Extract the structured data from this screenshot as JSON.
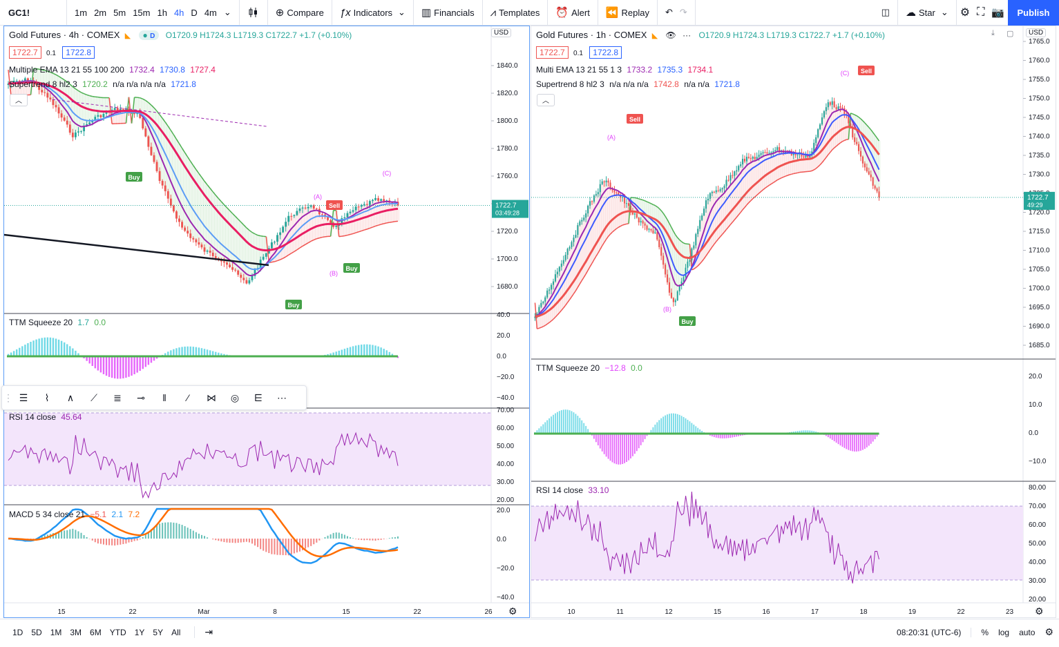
{
  "toolbar": {
    "symbol": "GC1!",
    "intervals": [
      "1m",
      "2m",
      "5m",
      "15m",
      "1h",
      "4h",
      "D",
      "4m"
    ],
    "compare_label": "Compare",
    "indicators_label": "Indicators",
    "financials_label": "Financials",
    "templates_label": "Templates",
    "alert_label": "Alert",
    "replay_label": "Replay",
    "star_label": "Star",
    "publish_label": "Publish"
  },
  "left_chart": {
    "title": "Gold Futures · 4h · COMEX",
    "ohlc": "O1720.9 H1724.3 L1719.3 C1722.7 +1.7 (+0.10%)",
    "bid": "1722.7",
    "spread": "0.1",
    "ask": "1722.8",
    "currency": "USD",
    "ema_legend": {
      "name": "Multiple EMA 13 21 55 100 200",
      "v1": "1732.4",
      "v2": "1730.8",
      "v3": "1727.4"
    },
    "supertrend_legend": {
      "name": "Supertrend 8 hl2 3",
      "v1": "1720.2",
      "v2": "n/a n/a n/a n/a",
      "v3": "1721.8"
    },
    "price_axis": [
      "1840.0",
      "1820.0",
      "1800.0",
      "1780.0",
      "1760.0",
      "1740.0",
      "1720.0",
      "1700.0",
      "1680.0"
    ],
    "price_label": "1722.7",
    "countdown": "03:49:28",
    "annotations": {
      "a": "(A)",
      "b": "(B)",
      "c": "(C)",
      "sell": "Sell",
      "buy": "Buy"
    },
    "ttm": {
      "name": "TTM Squeeze 20",
      "v1": "1.7",
      "v2": "0.0",
      "axis": [
        "40.0",
        "20.0",
        "0.0",
        "−20.0",
        "−40.0"
      ]
    },
    "rsi": {
      "name": "RSI 14 close",
      "v1": "45.64",
      "axis": [
        "70.00",
        "60.00",
        "50.00",
        "40.00",
        "30.00",
        "20.00"
      ]
    },
    "macd": {
      "name": "MACD 5 34 close 21",
      "v1": "−5.1",
      "v2": "2.1",
      "v3": "7.2",
      "axis": [
        "20.0",
        "0.0",
        "−20.0",
        "−40.0"
      ]
    },
    "time_axis": [
      "15",
      "22",
      "Mar",
      "8",
      "15",
      "22",
      "26"
    ]
  },
  "right_chart": {
    "title": "Gold Futures · 1h · COMEX",
    "ohlc": "O1720.9 H1724.3 L1719.3 C1722.7 +1.7 (+0.10%)",
    "bid": "1722.7",
    "spread": "0.1",
    "ask": "1722.8",
    "currency": "USD",
    "ema_legend": {
      "name": "Multi EMA 13 21 55 1 3",
      "v1": "1733.2",
      "v2": "1735.3",
      "v3": "1734.1"
    },
    "supertrend_legend": {
      "name": "Supertrend 8 hl2 3",
      "v2": "n/a n/a n/a",
      "v1": "1742.8",
      "v3": "n/a n/a",
      "v4": "1721.8"
    },
    "price_axis": [
      "1765.0",
      "1760.0",
      "1755.0",
      "1750.0",
      "1745.0",
      "1740.0",
      "1735.0",
      "1730.0",
      "1725.0",
      "1720.0",
      "1715.0",
      "1710.0",
      "1705.0",
      "1700.0",
      "1695.0",
      "1690.0",
      "1685.0"
    ],
    "price_label": "1722.7",
    "countdown": "49:29",
    "annotations": {
      "a": "(A)",
      "b": "(B)",
      "c": "(C)",
      "sell": "Sell",
      "buy": "Buy"
    },
    "ttm": {
      "name": "TTM Squeeze 20",
      "v1": "−12.8",
      "v2": "0.0",
      "axis": [
        "20.0",
        "10.0",
        "0.0",
        "−10.0"
      ]
    },
    "rsi": {
      "name": "RSI 14 close",
      "v1": "33.10",
      "axis": [
        "80.00",
        "70.00",
        "60.00",
        "50.00",
        "40.00",
        "30.00",
        "20.00"
      ]
    },
    "time_axis": [
      "10",
      "11",
      "12",
      "15",
      "16",
      "17",
      "18",
      "19",
      "22",
      "23"
    ]
  },
  "bottom_bar": {
    "ranges": [
      "1D",
      "5D",
      "1M",
      "3M",
      "6M",
      "YTD",
      "1Y",
      "5Y",
      "All"
    ],
    "time": "08:20:31 (UTC-6)",
    "percent": "%",
    "log": "log",
    "auto": "auto"
  },
  "colors": {
    "accent": "#2962ff",
    "up": "#26a69a",
    "down": "#ef5350",
    "ema_pink": "#e91e63",
    "ema_blue": "#5b9cf6",
    "ema_purple": "#9c27b0",
    "supertrend_green": "#4caf50",
    "rsi_band": "#f3e5fb"
  }
}
